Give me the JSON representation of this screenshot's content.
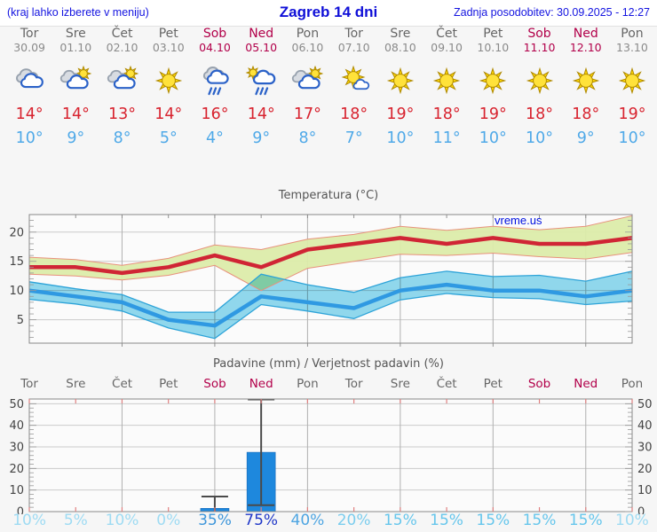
{
  "header": {
    "left_note": "(kraj lahko izberete v meniju)",
    "title": "Zagreb 14 dni",
    "updated": "Zadnja posodobitev: 30.09.2025 - 12:27"
  },
  "colors": {
    "header_text": "#1414e0",
    "weekday": "#666666",
    "weekend": "#b2004a",
    "high_temp": "#d8232f",
    "low_temp": "#4fa9e8",
    "max_line": "#d02535",
    "max_band": "#dcecaa",
    "max_band_edge": "#e8917c",
    "min_line": "#2f99e2",
    "min_band": "#92dbf0",
    "min_band_edge": "#2da3d8",
    "bar_fill": "#1e88dd",
    "whisker": "#4a4a4a",
    "grid_h": "#cbcbcb",
    "grid_v": "#b0b0b0",
    "spine": "#888888",
    "pink_tick": "#e08080",
    "watermark": "#0010e0"
  },
  "days": [
    {
      "name": "Tor",
      "date": "30.09",
      "weekend": false,
      "icon": "cloudy",
      "high": "14°",
      "low": "10°",
      "prob": "10%",
      "prob_color": "#9edbf3"
    },
    {
      "name": "Sre",
      "date": "01.10",
      "weekend": false,
      "icon": "sun-cloud",
      "high": "14°",
      "low": "9°",
      "prob": "5%",
      "prob_color": "#9edbf3"
    },
    {
      "name": "Čet",
      "date": "02.10",
      "weekend": false,
      "icon": "sun-cloud",
      "high": "13°",
      "low": "8°",
      "prob": "10%",
      "prob_color": "#9edbf3"
    },
    {
      "name": "Pet",
      "date": "03.10",
      "weekend": false,
      "icon": "sunny",
      "high": "14°",
      "low": "5°",
      "prob": "0%",
      "prob_color": "#9edbf3"
    },
    {
      "name": "Sob",
      "date": "04.10",
      "weekend": true,
      "icon": "rain",
      "high": "16°",
      "low": "4°",
      "prob": "35%",
      "prob_color": "#3e96da"
    },
    {
      "name": "Ned",
      "date": "05.10",
      "weekend": true,
      "icon": "sun-rain",
      "high": "14°",
      "low": "9°",
      "prob": "75%",
      "prob_color": "#2038c8"
    },
    {
      "name": "Pon",
      "date": "06.10",
      "weekend": false,
      "icon": "sun-cloud",
      "high": "17°",
      "low": "8°",
      "prob": "40%",
      "prob_color": "#4da5e2"
    },
    {
      "name": "Tor",
      "date": "07.10",
      "weekend": false,
      "icon": "sun-smallcloud",
      "high": "18°",
      "low": "7°",
      "prob": "20%",
      "prob_color": "#7bcdee"
    },
    {
      "name": "Sre",
      "date": "08.10",
      "weekend": false,
      "icon": "sunny",
      "high": "19°",
      "low": "10°",
      "prob": "15%",
      "prob_color": "#66c6ec"
    },
    {
      "name": "Čet",
      "date": "09.10",
      "weekend": false,
      "icon": "sunny",
      "high": "18°",
      "low": "11°",
      "prob": "15%",
      "prob_color": "#66c6ec"
    },
    {
      "name": "Pet",
      "date": "10.10",
      "weekend": false,
      "icon": "sunny",
      "high": "19°",
      "low": "10°",
      "prob": "15%",
      "prob_color": "#66c6ec"
    },
    {
      "name": "Sob",
      "date": "11.10",
      "weekend": true,
      "icon": "sunny",
      "high": "18°",
      "low": "10°",
      "prob": "15%",
      "prob_color": "#66c6ec"
    },
    {
      "name": "Ned",
      "date": "12.10",
      "weekend": true,
      "icon": "sunny",
      "high": "18°",
      "low": "9°",
      "prob": "15%",
      "prob_color": "#66c6ec"
    },
    {
      "name": "Pon",
      "date": "13.10",
      "weekend": false,
      "icon": "sunny",
      "high": "19°",
      "low": "10°",
      "prob": "10%",
      "prob_color": "#9edbf3"
    }
  ],
  "chart_data": [
    {
      "type": "line",
      "title": "Temperatura (°C)",
      "watermark": "vreme.us",
      "x_labels": [
        "Tor 30.09",
        "Sre 01.10",
        "Čet 02.10",
        "Pet 03.10",
        "Sob 04.10",
        "Ned 05.10",
        "Pon 06.10",
        "Tor 07.10",
        "Sre 08.10",
        "Čet 09.10",
        "Pet 10.10",
        "Sob 11.10",
        "Ned 12.10",
        "Pon 13.10"
      ],
      "ylim": [
        1,
        23
      ],
      "yticks": [
        5,
        10,
        15,
        20
      ],
      "series": [
        {
          "name": "max_temp",
          "color": "#d02535",
          "values": [
            14,
            14,
            13,
            14,
            16,
            14,
            17,
            18,
            19,
            18,
            19,
            18,
            18,
            19
          ]
        },
        {
          "name": "max_band_upper",
          "values": [
            15.7,
            15.3,
            14.3,
            15.5,
            17.8,
            17.0,
            18.8,
            19.6,
            21.0,
            20.3,
            21.0,
            20.4,
            21.0,
            22.8
          ]
        },
        {
          "name": "max_band_lower",
          "values": [
            12.8,
            12.5,
            11.8,
            12.6,
            14.3,
            10.0,
            13.8,
            15.0,
            16.2,
            16.0,
            16.4,
            15.8,
            15.4,
            16.5
          ]
        },
        {
          "name": "min_temp",
          "color": "#2f99e2",
          "values": [
            10,
            9,
            8,
            5,
            4,
            9,
            8,
            7,
            10,
            11,
            10,
            10,
            9,
            10
          ]
        },
        {
          "name": "min_band_upper",
          "values": [
            11.5,
            10.3,
            9.3,
            6.3,
            6.3,
            12.8,
            11.0,
            9.7,
            12.2,
            13.3,
            12.4,
            12.6,
            11.6,
            13.3
          ]
        },
        {
          "name": "min_band_lower",
          "values": [
            8.5,
            7.7,
            6.5,
            3.6,
            1.8,
            7.6,
            6.5,
            5.2,
            8.4,
            9.5,
            8.8,
            8.6,
            7.6,
            8.2
          ]
        }
      ]
    },
    {
      "type": "bar",
      "title": "Padavine (mm) / Verjetnost padavin (%)",
      "categories": [
        "Tor",
        "Sre",
        "Čet",
        "Pet",
        "Sob",
        "Ned",
        "Pon",
        "Tor",
        "Sre",
        "Čet",
        "Pet",
        "Sob",
        "Ned",
        "Pon"
      ],
      "values_mm": [
        0,
        0,
        0,
        0,
        1.5,
        27.5,
        0,
        0,
        0,
        0,
        0,
        0,
        0,
        0
      ],
      "ranges_mm": [
        null,
        null,
        null,
        null,
        [
          0,
          7
        ],
        [
          3,
          52
        ],
        null,
        null,
        null,
        null,
        null,
        null,
        null,
        null
      ],
      "probabilities_pct": [
        10,
        5,
        10,
        0,
        35,
        75,
        40,
        20,
        15,
        15,
        15,
        15,
        15,
        10
      ],
      "ylim": [
        0,
        52.2
      ],
      "yticks": [
        0,
        10,
        20,
        30,
        40,
        50
      ]
    }
  ]
}
